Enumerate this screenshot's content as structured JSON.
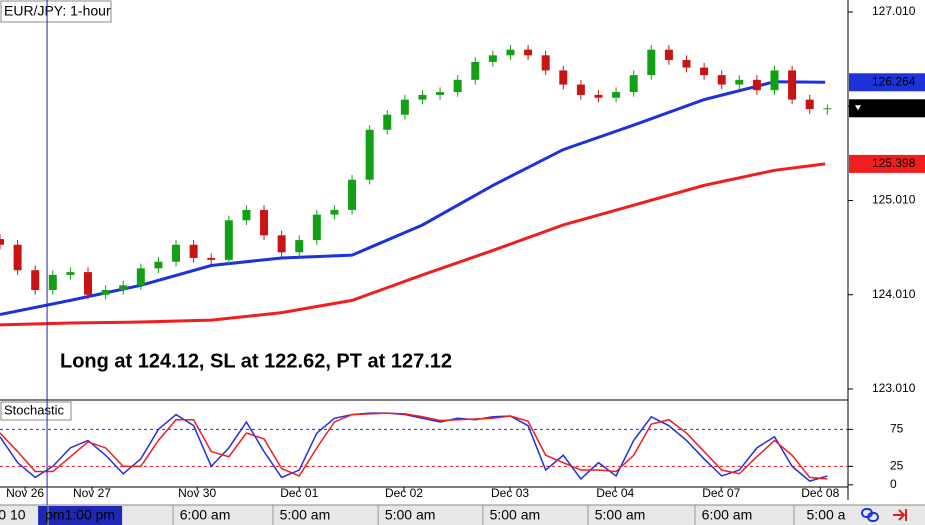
{
  "chart_data": [
    {
      "type": "candlestick",
      "title": "EUR/JPY: 1-hour",
      "annotation": "Long at 124.12, SL at 122.62, PT at 127.12",
      "x": [
        0,
        4,
        8,
        12,
        16,
        20,
        24,
        28,
        32,
        36,
        40,
        44,
        48,
        52,
        56,
        60,
        64,
        68,
        72,
        76,
        80,
        84,
        88,
        92,
        96,
        100,
        104,
        108,
        112,
        116,
        120,
        124,
        128,
        132,
        136,
        140,
        144,
        148,
        152,
        156,
        160,
        164,
        168,
        172,
        176,
        180,
        184,
        188
      ],
      "open": [
        124.6,
        124.54,
        124.27,
        124.06,
        124.22,
        124.25,
        124.01,
        124.06,
        124.11,
        124.29,
        124.36,
        124.54,
        124.4,
        124.38,
        124.8,
        124.91,
        124.64,
        124.46,
        124.59,
        124.86,
        124.91,
        125.23,
        125.76,
        125.92,
        126.08,
        126.13,
        126.16,
        126.29,
        126.48,
        126.55,
        126.61,
        126.55,
        126.39,
        126.24,
        126.13,
        126.1,
        126.16,
        126.34,
        126.61,
        126.5,
        126.42,
        126.34,
        126.24,
        126.29,
        126.18,
        126.39,
        126.08,
        125.98
      ],
      "high": [
        124.65,
        124.59,
        124.32,
        124.27,
        124.3,
        124.3,
        124.11,
        124.16,
        124.34,
        124.41,
        124.59,
        124.59,
        124.45,
        124.85,
        124.96,
        124.96,
        124.69,
        124.64,
        124.91,
        124.96,
        125.28,
        125.81,
        125.97,
        126.13,
        126.18,
        126.21,
        126.34,
        126.53,
        126.6,
        126.66,
        126.66,
        126.6,
        126.44,
        126.29,
        126.18,
        126.21,
        126.39,
        126.66,
        126.66,
        126.55,
        126.47,
        126.39,
        126.34,
        126.34,
        126.44,
        126.44,
        126.13,
        126.03
      ],
      "low": [
        124.49,
        124.22,
        124.01,
        124.01,
        124.17,
        123.96,
        123.96,
        124.01,
        124.06,
        124.24,
        124.31,
        124.35,
        124.33,
        124.33,
        124.75,
        124.59,
        124.41,
        124.41,
        124.54,
        124.81,
        124.86,
        125.18,
        125.71,
        125.87,
        126.03,
        126.08,
        126.11,
        126.24,
        126.43,
        126.5,
        126.5,
        126.34,
        126.19,
        126.08,
        126.05,
        126.05,
        126.11,
        126.29,
        126.45,
        126.37,
        126.29,
        126.19,
        126.19,
        126.13,
        126.13,
        126.03,
        125.93,
        125.92
      ],
      "close": [
        124.54,
        124.27,
        124.06,
        124.22,
        124.25,
        124.01,
        124.06,
        124.11,
        124.29,
        124.36,
        124.54,
        124.4,
        124.38,
        124.8,
        124.91,
        124.64,
        124.46,
        124.59,
        124.86,
        124.91,
        125.23,
        125.76,
        125.92,
        126.08,
        126.13,
        126.16,
        126.29,
        126.48,
        126.55,
        126.61,
        126.55,
        126.39,
        126.24,
        126.13,
        126.1,
        126.16,
        126.34,
        126.61,
        126.5,
        126.42,
        126.34,
        126.24,
        126.29,
        126.18,
        126.39,
        126.08,
        125.98,
        125.988
      ],
      "up_color": "#14a014",
      "down_color": "#c81414",
      "lines": [
        {
          "color": "#1e32dc",
          "x": [
            0,
            16,
            32,
            48,
            64,
            80,
            96,
            112,
            128,
            144,
            160,
            176,
            187.5
          ],
          "values": [
            123.8,
            123.95,
            124.11,
            124.32,
            124.4,
            124.43,
            124.75,
            125.17,
            125.55,
            125.81,
            126.08,
            126.27,
            126.264
          ]
        },
        {
          "color": "#f01e1e",
          "x": [
            0,
            16,
            32,
            48,
            64,
            80,
            96,
            112,
            128,
            144,
            160,
            176,
            187.5
          ],
          "values": [
            123.69,
            123.71,
            123.72,
            123.74,
            123.82,
            123.95,
            124.22,
            124.48,
            124.75,
            124.96,
            125.17,
            125.33,
            125.398
          ]
        }
      ],
      "marker_x": 10.7,
      "marker_color": "#1e28b4",
      "xlim": [
        0,
        192.7
      ],
      "ylim": [
        122.893,
        127.137
      ],
      "yticks": [
        {
          "value": 123.01,
          "label": "123.010"
        },
        {
          "value": 124.01,
          "label": "124.010"
        },
        {
          "value": 125.01,
          "label": "125.010"
        },
        {
          "value": 126.01,
          "label": "126.010"
        },
        {
          "value": 127.01,
          "label": "127.010"
        }
      ]
    },
    {
      "type": "line",
      "title": "Stochastic",
      "x": [
        0,
        4,
        8,
        12,
        16,
        20,
        24,
        28,
        32,
        36,
        40,
        44,
        48,
        52,
        56,
        60,
        64,
        68,
        72,
        76,
        80,
        84,
        88,
        92,
        96,
        100,
        104,
        108,
        112,
        116,
        120,
        124,
        128,
        132,
        136,
        140,
        144,
        148,
        152,
        156,
        160,
        164,
        168,
        172,
        176,
        180,
        184,
        188
      ],
      "series": [
        {
          "color": "#1e32dc",
          "values": [
            65,
            30,
            10,
            25,
            50,
            60,
            40,
            15,
            35,
            75,
            95,
            80,
            25,
            50,
            85,
            45,
            10,
            20,
            70,
            90,
            95,
            97,
            97,
            95,
            90,
            85,
            90,
            88,
            92,
            93,
            80,
            20,
            40,
            8,
            30,
            12,
            60,
            92,
            80,
            60,
            35,
            12,
            20,
            50,
            65,
            25,
            5,
            12
          ]
        },
        {
          "color": "#f01e1e",
          "values": [
            70,
            45,
            18,
            18,
            38,
            58,
            50,
            25,
            25,
            60,
            88,
            88,
            45,
            38,
            70,
            62,
            22,
            12,
            50,
            85,
            95,
            96,
            97,
            96,
            92,
            87,
            88,
            89,
            90,
            93,
            86,
            40,
            30,
            20,
            20,
            18,
            40,
            82,
            88,
            70,
            45,
            20,
            15,
            38,
            60,
            40,
            10,
            8
          ]
        }
      ],
      "levels": [
        {
          "value": 75,
          "color": "#1e32dc"
        },
        {
          "value": 25,
          "color": "#dc1e1e"
        }
      ],
      "xlim": [
        0,
        192.7
      ],
      "ylim": [
        -7,
        112
      ],
      "yticks": [
        0,
        25,
        75
      ],
      "xticks": [
        {
          "value": 5.7,
          "label": "Nov 26"
        },
        {
          "value": 20.9,
          "label": "Nov 27"
        },
        {
          "value": 44.8,
          "label": "Nov 30"
        },
        {
          "value": 68,
          "label": "Dec 01"
        },
        {
          "value": 91.8,
          "label": "Dec 02"
        },
        {
          "value": 115.9,
          "label": "Dec 03"
        },
        {
          "value": 139.8,
          "label": "Dec 04"
        },
        {
          "value": 163.9,
          "label": "Dec 07"
        },
        {
          "value": 186.4,
          "label": "Dec 08"
        }
      ],
      "time_labels": [
        {
          "value": 2.7,
          "label": "0 10"
        },
        {
          "value": 18.2,
          "label": "pm1:00 pm"
        },
        {
          "value": 46.6,
          "label": "6:00 am"
        },
        {
          "value": 69.3,
          "label": "5:00 am"
        },
        {
          "value": 93.2,
          "label": "5:00 am"
        },
        {
          "value": 117,
          "label": "5:00 am"
        },
        {
          "value": 140.9,
          "label": "5:00 am"
        },
        {
          "value": 165.2,
          "label": "6:00 am"
        },
        {
          "value": 187.7,
          "label": "5:00 a"
        }
      ]
    }
  ]
}
